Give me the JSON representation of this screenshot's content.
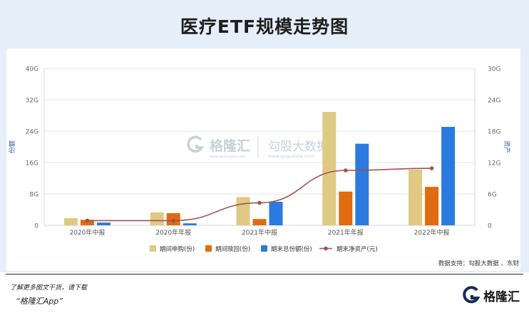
{
  "title": "医疗ETF规模走势图",
  "source_note": "数据支持：勾股大数据 、东财",
  "watermark": {
    "brand": "格隆汇",
    "sub": "www.gelonghui.com",
    "partner": "勾股大数据",
    "partner_sub": "www.gogudata.com"
  },
  "footer": {
    "promo_line1": "了解更多图文干货，请下载",
    "promo_line2": "“格隆汇App”",
    "brand": "格隆汇"
  },
  "colors": {
    "subscribe": "#dfc983",
    "redeem": "#e16b10",
    "total_shares": "#2b7ae0",
    "nav_line": "#a3524e",
    "panel_bg": "#e6eefa"
  },
  "chart_data": {
    "type": "bar",
    "title": "医疗ETF规模走势图",
    "categories": [
      "2020年中报",
      "2020年年报",
      "2021年中报",
      "2021年年报",
      "2022年中报"
    ],
    "series": [
      {
        "name": "期间申购(份)",
        "type": "bar",
        "axis": "left",
        "values": [
          1.8,
          3.3,
          7.2,
          28.9,
          14.2
        ]
      },
      {
        "name": "期间赎回(份)",
        "type": "bar",
        "axis": "left",
        "values": [
          1.4,
          3.1,
          1.6,
          8.6,
          9.8
        ]
      },
      {
        "name": "期末总份额(份)",
        "type": "bar",
        "axis": "left",
        "values": [
          0.7,
          0.5,
          6.0,
          20.8,
          25.1
        ]
      },
      {
        "name": "期末净资产(元)",
        "type": "line",
        "axis": "right",
        "values": [
          0.9,
          0.9,
          4.3,
          10.5,
          10.9
        ]
      }
    ],
    "ylabel_left": "份额",
    "ylabel_right": "资产",
    "ylim_left": [
      0,
      40
    ],
    "ylim_right": [
      0,
      30
    ],
    "y_ticks_left": [
      "0",
      "8G",
      "16G",
      "24G",
      "32G",
      "40G"
    ],
    "y_ticks_right": [
      "0",
      "6G",
      "12G",
      "18G",
      "24G",
      "30G"
    ],
    "grid": true,
    "legend_position": "bottom"
  }
}
